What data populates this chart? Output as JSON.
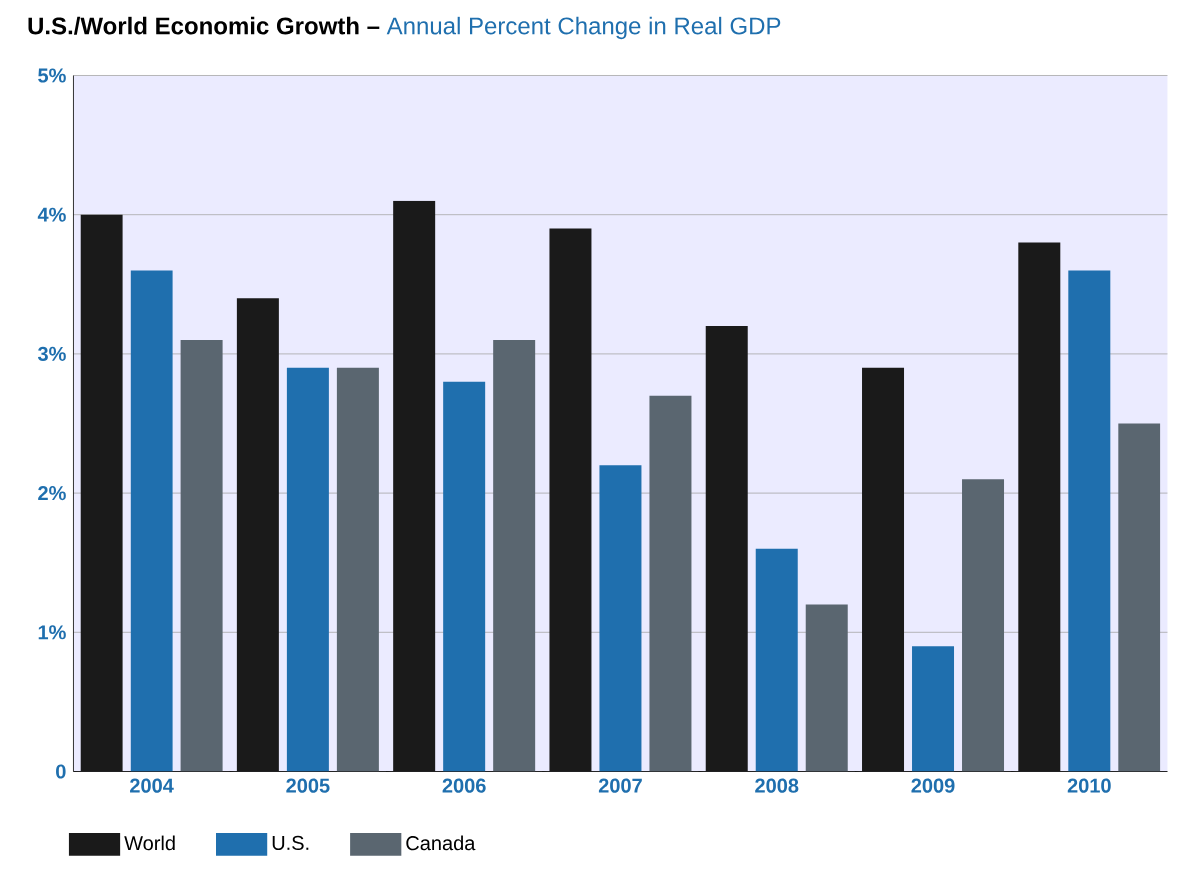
{
  "chart_data": {
    "type": "bar",
    "title": "U.S./World Economic Growth –",
    "subtitle": "Annual Percent Change in Real GDP",
    "categories": [
      "2004",
      "2005",
      "2006",
      "2007",
      "2008",
      "2009",
      "2010"
    ],
    "series": [
      {
        "name": "World",
        "color": "#1a1a1a",
        "values": [
          4.0,
          3.4,
          4.1,
          3.9,
          3.2,
          2.9,
          3.8
        ]
      },
      {
        "name": "U.S.",
        "color": "#1f6fae",
        "values": [
          3.6,
          2.9,
          2.8,
          2.2,
          1.6,
          0.9,
          3.6
        ]
      },
      {
        "name": "Canada",
        "color": "#5a6670",
        "values": [
          3.1,
          2.9,
          3.1,
          2.7,
          1.2,
          2.1,
          2.5
        ]
      }
    ],
    "ylim": [
      0,
      5
    ],
    "yticks": [
      0,
      {
        "value": 1,
        "label": "1%"
      },
      {
        "value": 2,
        "label": "2%"
      },
      {
        "value": 3,
        "label": "3%"
      },
      {
        "value": 4,
        "label": "4%"
      },
      {
        "value": 5,
        "label": "5%"
      }
    ],
    "grid": "y",
    "legend": "bottom left"
  }
}
